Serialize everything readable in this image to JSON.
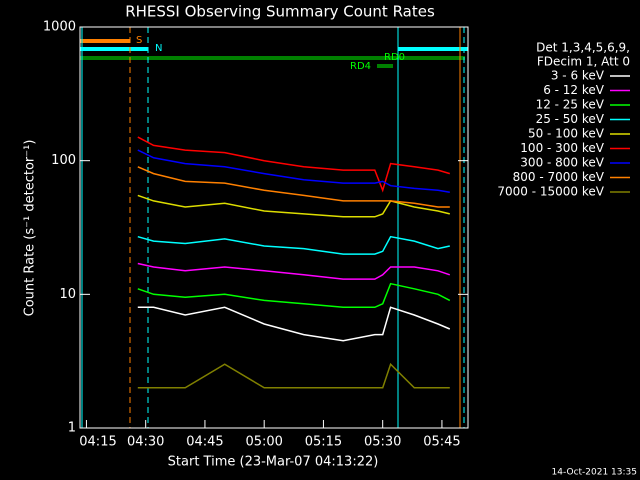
{
  "chart_data": {
    "type": "line",
    "title": "RHESSI Observing Summary Count Rates",
    "x_label": "Start Time (23-Mar-07 04:13:22)",
    "y_label": "Count Rate (s⁻¹ detector⁻¹)",
    "legend_header": [
      "Det 1,3,4,5,6,9,",
      "FDecim 1, Att 0"
    ],
    "footer": "14-Oct-2021 13:35",
    "annotations": [
      "S",
      "N",
      "RD0",
      "RD4"
    ],
    "log_y": true,
    "xlim": [
      253.37,
      351.6
    ],
    "ylim": [
      1,
      1000
    ],
    "xticks": [
      {
        "value": 255,
        "label": "04:15"
      },
      {
        "value": 270,
        "label": "04:30"
      },
      {
        "value": 285,
        "label": "04:45"
      },
      {
        "value": 300,
        "label": "05:00"
      },
      {
        "value": 315,
        "label": "05:15"
      },
      {
        "value": 330,
        "label": "05:30"
      },
      {
        "value": 345,
        "label": "05:45"
      }
    ],
    "yticks": [
      1,
      10,
      100,
      1000
    ],
    "x": [
      268,
      272,
      280,
      290,
      300,
      310,
      320,
      328,
      330,
      332,
      338,
      344,
      347
    ],
    "series": [
      {
        "name": "3 - 6 keV",
        "color": "#ffffff",
        "values": [
          8,
          8,
          7,
          8,
          6,
          5,
          4.5,
          5,
          5,
          8,
          7,
          6,
          5.5
        ]
      },
      {
        "name": "6 - 12 keV",
        "color": "#ff00ff",
        "values": [
          17,
          16,
          15,
          16,
          15,
          14,
          13,
          13,
          14,
          16,
          16,
          15,
          14
        ]
      },
      {
        "name": "12 - 25 keV",
        "color": "#00ff00",
        "values": [
          11,
          10,
          9.5,
          10,
          9,
          8.5,
          8,
          8,
          8.5,
          12,
          11,
          10,
          9
        ]
      },
      {
        "name": "25 - 50 keV",
        "color": "#00ffff",
        "values": [
          27,
          25,
          24,
          26,
          23,
          22,
          20,
          20,
          21,
          27,
          25,
          22,
          23
        ]
      },
      {
        "name": "50 - 100 keV",
        "color": "#dddd00",
        "values": [
          55,
          50,
          45,
          48,
          42,
          40,
          38,
          38,
          40,
          50,
          45,
          42,
          40
        ]
      },
      {
        "name": "100 - 300 keV",
        "color": "#ff0000",
        "values": [
          150,
          130,
          120,
          115,
          100,
          90,
          85,
          85,
          60,
          95,
          90,
          85,
          80
        ]
      },
      {
        "name": "300 - 800 keV",
        "color": "#0000ff",
        "values": [
          120,
          105,
          95,
          90,
          80,
          72,
          68,
          68,
          70,
          65,
          62,
          60,
          58
        ]
      },
      {
        "name": "800 - 7000 keV",
        "color": "#ff8000",
        "values": [
          90,
          80,
          70,
          68,
          60,
          55,
          50,
          50,
          50,
          50,
          48,
          45,
          45
        ]
      },
      {
        "name": "7000 - 15000 keV",
        "color": "#808000",
        "values": [
          2,
          2,
          2,
          3,
          2,
          2,
          2,
          2,
          2,
          3,
          2,
          2,
          2
        ]
      }
    ]
  }
}
